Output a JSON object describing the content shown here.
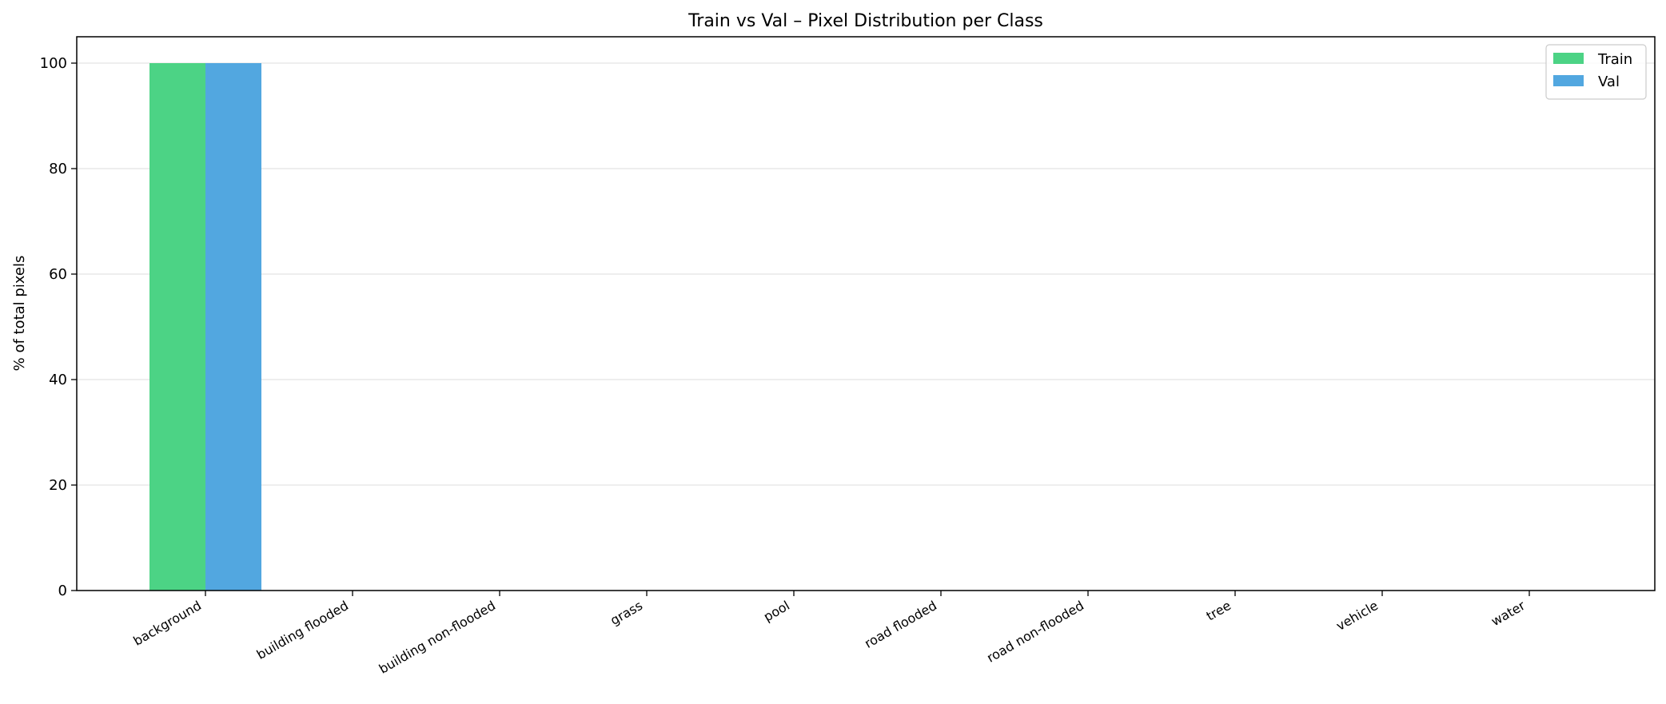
{
  "chart_data": {
    "type": "bar",
    "title": "Train vs Val – Pixel Distribution per Class",
    "xlabel": "",
    "ylabel": "% of total pixels",
    "categories": [
      "background",
      "building flooded",
      "building non-flooded",
      "grass",
      "pool",
      "road flooded",
      "road non-flooded",
      "tree",
      "vehicle",
      "water"
    ],
    "series": [
      {
        "name": "Train",
        "color": "#4cd385",
        "values": [
          100,
          0,
          0,
          0,
          0,
          0,
          0,
          0,
          0,
          0
        ]
      },
      {
        "name": "Val",
        "color": "#52a7e0",
        "values": [
          100,
          0,
          0,
          0,
          0,
          0,
          0,
          0,
          0,
          0
        ]
      }
    ],
    "ylim": [
      0,
      105
    ],
    "yticks": [
      "0",
      "20",
      "40",
      "60",
      "80",
      "100"
    ],
    "grid": "y",
    "legend": "top-right"
  }
}
